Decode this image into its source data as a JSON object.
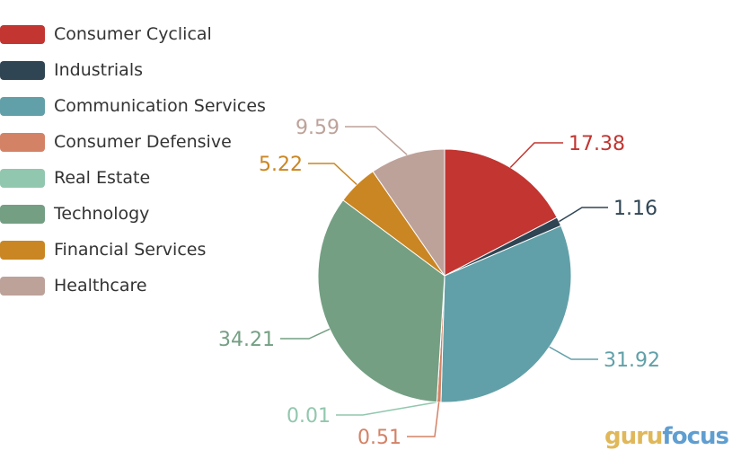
{
  "chart_data": {
    "type": "pie",
    "legend_position": "top-left",
    "categories": [
      "Consumer Cyclical",
      "Industrials",
      "Communication Services",
      "Consumer Defensive",
      "Real Estate",
      "Technology",
      "Financial Services",
      "Healthcare"
    ],
    "values": [
      17.38,
      1.16,
      31.92,
      0.51,
      0.01,
      34.21,
      5.22,
      9.59
    ],
    "value_labels": [
      "17.38",
      "1.16",
      "31.92",
      "0.51",
      "0.01",
      "34.21",
      "5.22",
      "9.59"
    ],
    "colors": [
      "#c23531",
      "#2f4554",
      "#61a0a8",
      "#d48265",
      "#91c7ae",
      "#749f83",
      "#ca8622",
      "#bda29a"
    ]
  },
  "watermark": {
    "part1": "guru",
    "part2": "focus"
  }
}
